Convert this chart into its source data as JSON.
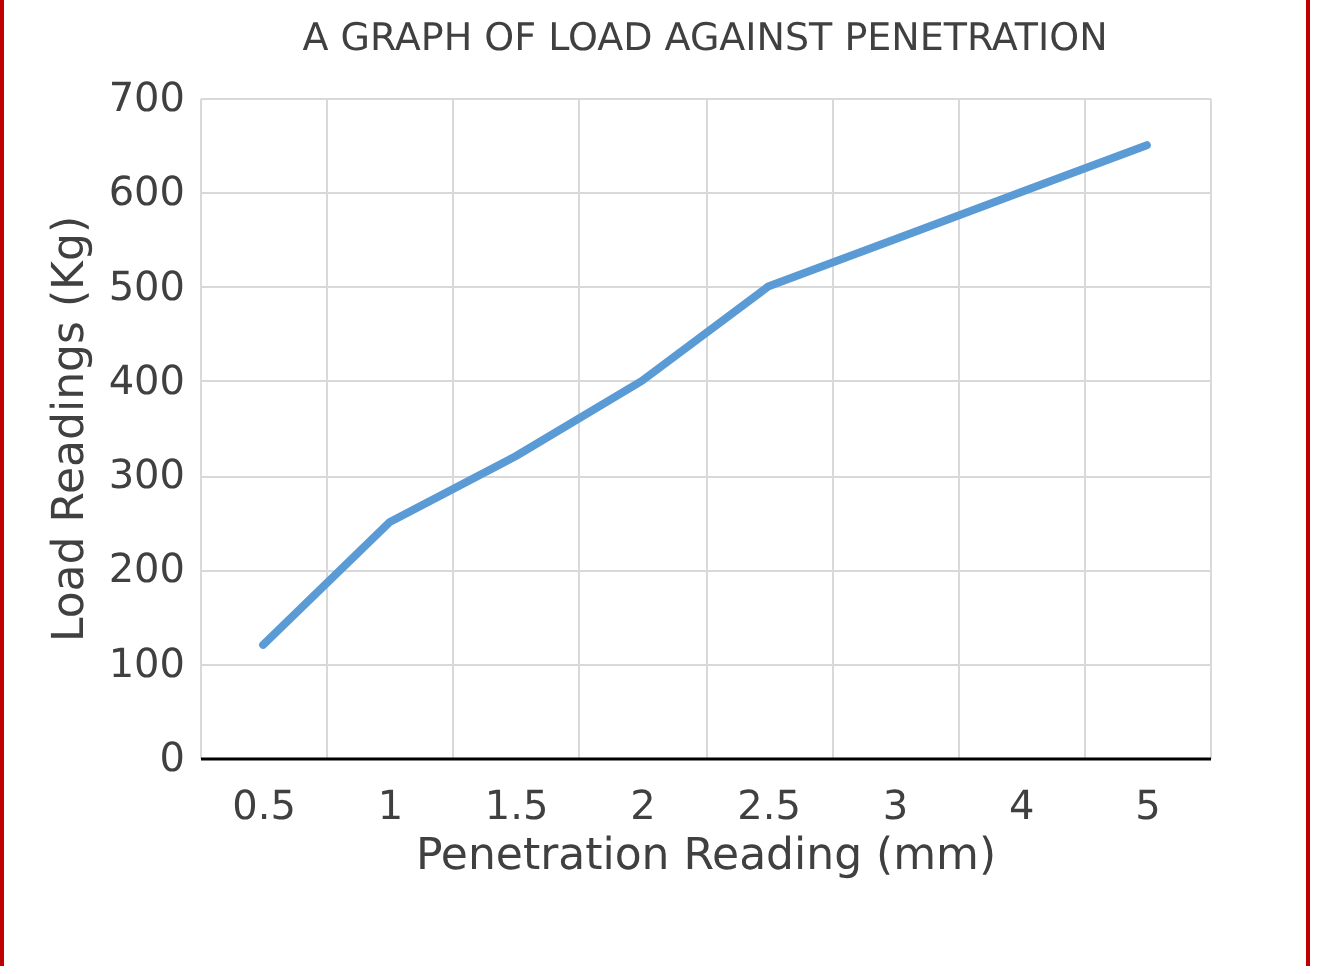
{
  "chart_data": {
    "type": "line",
    "title": "A GRAPH OF LOAD AGAINST PENETRATION",
    "xlabel": "Penetration Reading (mm)",
    "ylabel": "Load Readings (Kg)",
    "categories": [
      "0.5",
      "1",
      "1.5",
      "2",
      "2.5",
      "3",
      "4",
      "5"
    ],
    "series": [
      {
        "color": "#5b9bd5",
        "values": [
          120,
          250,
          320,
          400,
          500,
          550,
          600,
          650
        ]
      }
    ],
    "ylim": [
      0,
      700
    ],
    "yticks": [
      0,
      100,
      200,
      300,
      400,
      500,
      600,
      700
    ],
    "grid": true,
    "legend": false,
    "marker": "none",
    "line_style": "solid"
  }
}
